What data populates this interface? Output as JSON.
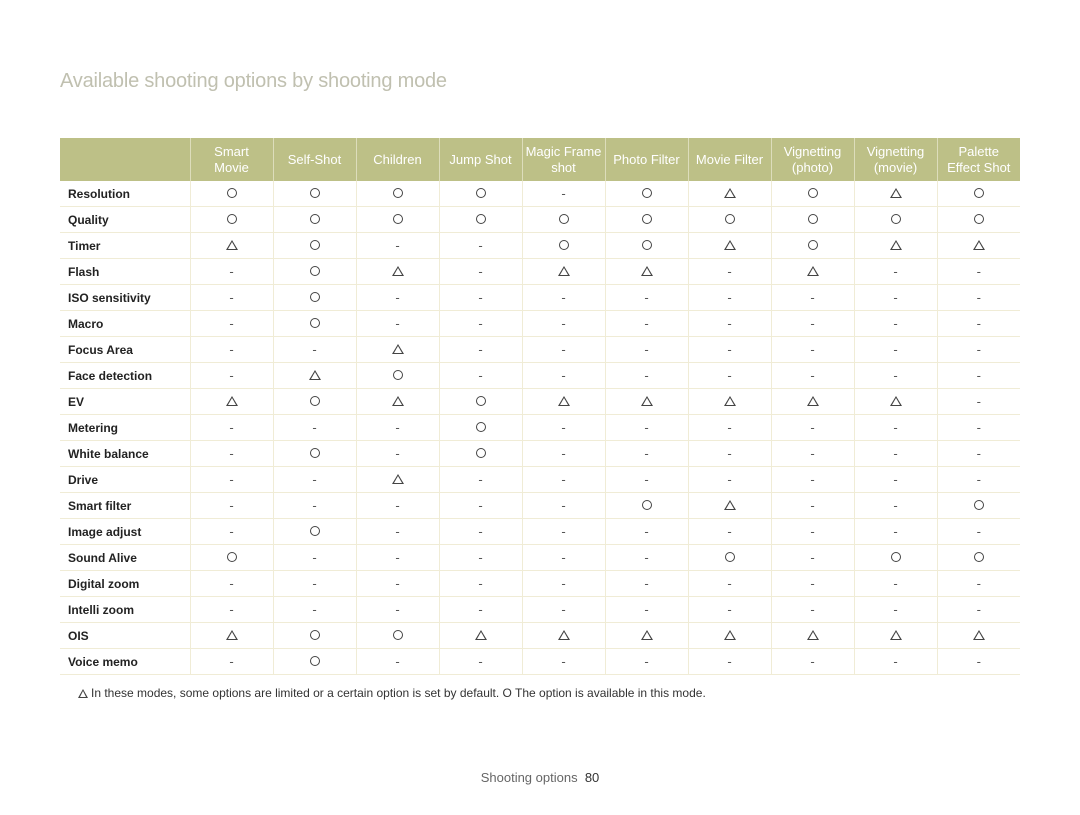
{
  "title": "Available shooting options by shooting mode",
  "columns": [
    "Smart\nMovie",
    "Self-Shot",
    "Children",
    "Jump Shot",
    "Magic Frame\nshot",
    "Photo Filter",
    "Movie Filter",
    "Vignetting\n(photo)",
    "Vignetting\n(movie)",
    "Palette\nEffect Shot"
  ],
  "rows": [
    {
      "label": "Resolution",
      "cells": [
        "O",
        "O",
        "O",
        "O",
        "-",
        "O",
        "T",
        "O",
        "T",
        "O"
      ]
    },
    {
      "label": "Quality",
      "cells": [
        "O",
        "O",
        "O",
        "O",
        "O",
        "O",
        "O",
        "O",
        "O",
        "O"
      ]
    },
    {
      "label": "Timer",
      "cells": [
        "T",
        "O",
        "-",
        "-",
        "O",
        "O",
        "T",
        "O",
        "T",
        "T"
      ]
    },
    {
      "label": "Flash",
      "cells": [
        "-",
        "O",
        "T",
        "-",
        "T",
        "T",
        "-",
        "T",
        "-",
        "-"
      ]
    },
    {
      "label": "ISO sensitivity",
      "cells": [
        "-",
        "O",
        "-",
        "-",
        "-",
        "-",
        "-",
        "-",
        "-",
        "-"
      ]
    },
    {
      "label": "Macro",
      "cells": [
        "-",
        "O",
        "-",
        "-",
        "-",
        "-",
        "-",
        "-",
        "-",
        "-"
      ]
    },
    {
      "label": "Focus Area",
      "cells": [
        "-",
        "-",
        "T",
        "-",
        "-",
        "-",
        "-",
        "-",
        "-",
        "-"
      ]
    },
    {
      "label": "Face detection",
      "cells": [
        "-",
        "T",
        "O",
        "-",
        "-",
        "-",
        "-",
        "-",
        "-",
        "-"
      ]
    },
    {
      "label": "EV",
      "cells": [
        "T",
        "O",
        "T",
        "O",
        "T",
        "T",
        "T",
        "T",
        "T",
        "-"
      ]
    },
    {
      "label": "Metering",
      "cells": [
        "-",
        "-",
        "-",
        "O",
        "-",
        "-",
        "-",
        "-",
        "-",
        "-"
      ]
    },
    {
      "label": "White balance",
      "cells": [
        "-",
        "O",
        "-",
        "O",
        "-",
        "-",
        "-",
        "-",
        "-",
        "-"
      ]
    },
    {
      "label": "Drive",
      "cells": [
        "-",
        "-",
        "T",
        "-",
        "-",
        "-",
        "-",
        "-",
        "-",
        "-"
      ]
    },
    {
      "label": "Smart filter",
      "cells": [
        "-",
        "-",
        "-",
        "-",
        "-",
        "O",
        "T",
        "-",
        "-",
        "O"
      ]
    },
    {
      "label": "Image adjust",
      "cells": [
        "-",
        "O",
        "-",
        "-",
        "-",
        "-",
        "-",
        "-",
        "-",
        "-"
      ]
    },
    {
      "label": "Sound Alive",
      "cells": [
        "O",
        "-",
        "-",
        "-",
        "-",
        "-",
        "O",
        "-",
        "O",
        "O"
      ]
    },
    {
      "label": "Digital zoom",
      "cells": [
        "-",
        "-",
        "-",
        "-",
        "-",
        "-",
        "-",
        "-",
        "-",
        "-"
      ]
    },
    {
      "label": "Intelli zoom",
      "cells": [
        "-",
        "-",
        "-",
        "-",
        "-",
        "-",
        "-",
        "-",
        "-",
        "-"
      ]
    },
    {
      "label": "OIS",
      "cells": [
        "T",
        "O",
        "O",
        "T",
        "T",
        "T",
        "T",
        "T",
        "T",
        "T"
      ]
    },
    {
      "label": "Voice memo",
      "cells": [
        "-",
        "O",
        "-",
        "-",
        "-",
        "-",
        "-",
        "-",
        "-",
        "-"
      ]
    }
  ],
  "legend": "In these modes, some options are limited or a certain option is set by default. O The option is available in this mode.",
  "footer_label": "Shooting options",
  "footer_page": "80",
  "colors": {
    "header_bg": "#bdc087",
    "header_text": "#ffffff",
    "row_border": "#f0ecd6",
    "title_color": "#c0c0b0"
  }
}
